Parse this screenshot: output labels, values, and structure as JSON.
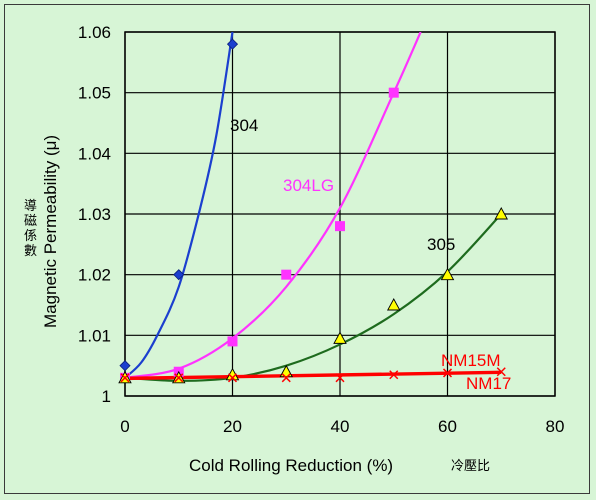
{
  "chart_data": {
    "type": "line",
    "title": "",
    "xlabel": "Cold Rolling Reduction (%)",
    "xlabel_cjk": "冷壓比",
    "ylabel": "Magnetic Permeability (μ)",
    "ylabel_cjk": "導磁係數",
    "xlim": [
      0,
      80
    ],
    "ylim": [
      1.0,
      1.06
    ],
    "x_ticks": [
      "0",
      "20",
      "40",
      "60",
      "80"
    ],
    "y_ticks": [
      "1",
      "1.01",
      "1.02",
      "1.03",
      "1.04",
      "1.05",
      "1.06"
    ],
    "grid": "horizontal-and-vertical",
    "series": [
      {
        "name": "304",
        "color": "#1b3fcf",
        "marker": "diamond",
        "marker_color": "#1b3fcf",
        "points": [
          [
            0,
            1.005
          ],
          [
            10,
            1.02
          ],
          [
            20,
            1.058
          ]
        ],
        "curve": [
          [
            0,
            1.003
          ],
          [
            3,
            1.0055
          ],
          [
            6,
            1.01
          ],
          [
            10,
            1.018
          ],
          [
            14,
            1.031
          ],
          [
            17,
            1.043
          ],
          [
            20,
            1.06
          ]
        ]
      },
      {
        "name": "304LG",
        "color": "#ff33ff",
        "marker": "square",
        "marker_color": "#ff33ff",
        "points": [
          [
            0,
            1.003
          ],
          [
            10,
            1.004
          ],
          [
            20,
            1.009
          ],
          [
            30,
            1.02
          ],
          [
            40,
            1.028
          ],
          [
            50,
            1.05
          ]
        ],
        "curve": [
          [
            0,
            1.003
          ],
          [
            10,
            1.0045
          ],
          [
            20,
            1.0095
          ],
          [
            30,
            1.018
          ],
          [
            40,
            1.031
          ],
          [
            50,
            1.05
          ],
          [
            55,
            1.06
          ]
        ]
      },
      {
        "name": "305",
        "color": "#1e6b1e",
        "marker": "triangle",
        "marker_color": "#ffff00",
        "points": [
          [
            0,
            1.003
          ],
          [
            10,
            1.003
          ],
          [
            20,
            1.0035
          ],
          [
            30,
            1.004
          ],
          [
            40,
            1.0095
          ],
          [
            50,
            1.015
          ],
          [
            60,
            1.02
          ],
          [
            70,
            1.03
          ]
        ],
        "curve": [
          [
            0,
            1.003
          ],
          [
            10,
            1.0025
          ],
          [
            20,
            1.003
          ],
          [
            30,
            1.005
          ],
          [
            40,
            1.0085
          ],
          [
            50,
            1.0135
          ],
          [
            60,
            1.0205
          ],
          [
            70,
            1.03
          ]
        ]
      },
      {
        "name": "NM15M",
        "color": "#ff0000",
        "marker": "x",
        "marker_color": "#ff0000",
        "points": [
          [
            0,
            1.003
          ],
          [
            10,
            1.003
          ],
          [
            20,
            1.003
          ],
          [
            30,
            1.003
          ],
          [
            40,
            1.003
          ],
          [
            50,
            1.0035
          ],
          [
            60,
            1.0038
          ],
          [
            70,
            1.004
          ]
        ],
        "curve": [
          [
            0,
            1.003
          ],
          [
            70,
            1.004
          ]
        ]
      },
      {
        "name": "NM17",
        "color": "#ff0000",
        "marker": "none",
        "marker_color": "#ff0000",
        "points": [],
        "curve": [
          [
            0,
            1.0028
          ],
          [
            70,
            1.0038
          ]
        ]
      }
    ]
  }
}
